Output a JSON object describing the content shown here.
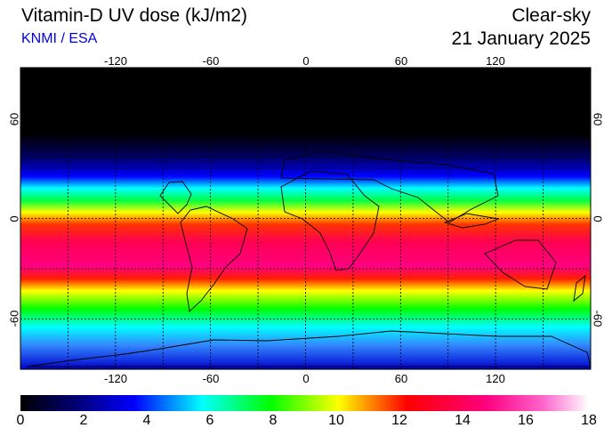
{
  "header": {
    "title": "Vitamin-D UV dose (kJ/m2)",
    "credit": "KNMI / ESA",
    "condition": "Clear-sky",
    "date": "21 January 2025"
  },
  "map": {
    "projection": "equirectangular",
    "lon_ticks": [
      "-120",
      "-60",
      "0",
      "60",
      "120"
    ],
    "lat_ticks": [
      "60",
      "0",
      "-60"
    ],
    "grid": true,
    "grid_spacing_deg": 30,
    "colors": {
      "ocean_land_gradient": [
        "#000000",
        "#000044",
        "#0000ff",
        "#00ffff",
        "#00ff00",
        "#ffff00",
        "#ff0000",
        "#ff0080",
        "#ffffff"
      ],
      "coastline": "#000000"
    }
  },
  "colorbar": {
    "ticks": [
      "0",
      "2",
      "4",
      "6",
      "8",
      "10",
      "12",
      "14",
      "16",
      "18"
    ],
    "min": 0,
    "max": 18,
    "stops": [
      "#000000",
      "#0000aa",
      "#0000ff",
      "#00ffff",
      "#00ff00",
      "#ffff00",
      "#ff0000",
      "#ff00aa",
      "#ffffff"
    ]
  }
}
